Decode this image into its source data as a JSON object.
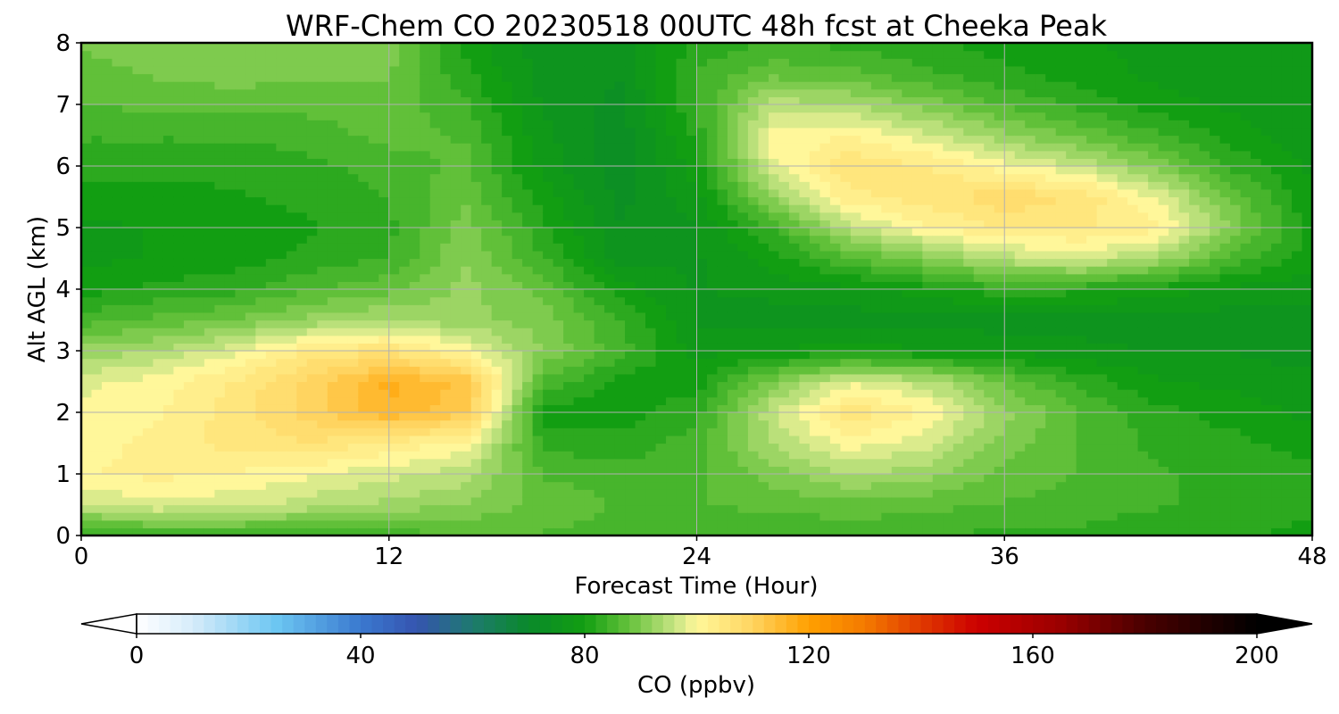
{
  "chart_data": {
    "type": "heatmap",
    "title": "WRF-Chem CO  20230518 00UTC 48h fcst at Cheeka Peak",
    "xlabel": "Forecast Time (Hour)",
    "ylabel": "Alt AGL (km)",
    "xlim": [
      0,
      48
    ],
    "ylim": [
      0,
      8
    ],
    "x_ticks": [
      0,
      12,
      24,
      36,
      48
    ],
    "y_ticks": [
      0,
      1,
      2,
      3,
      4,
      5,
      6,
      7,
      8
    ],
    "grid": true,
    "colorbar": {
      "label": "CO  (ppbv)",
      "range": [
        0,
        200
      ],
      "ticks": [
        0,
        40,
        80,
        120,
        160,
        200
      ],
      "extend": "both",
      "placement": "bottom",
      "stops": [
        {
          "v": 0,
          "c": "#ffffff"
        },
        {
          "v": 10,
          "c": "#d6ecfa"
        },
        {
          "v": 25,
          "c": "#6cc6f2"
        },
        {
          "v": 40,
          "c": "#3a79cf"
        },
        {
          "v": 50,
          "c": "#3554b0"
        },
        {
          "v": 60,
          "c": "#1e7a6e"
        },
        {
          "v": 70,
          "c": "#0a8a2a"
        },
        {
          "v": 80,
          "c": "#129e12"
        },
        {
          "v": 88,
          "c": "#66c23c"
        },
        {
          "v": 96,
          "c": "#c6e483"
        },
        {
          "v": 100,
          "c": "#fff79a"
        },
        {
          "v": 110,
          "c": "#ffd460"
        },
        {
          "v": 120,
          "c": "#ffa000"
        },
        {
          "v": 130,
          "c": "#f47a00"
        },
        {
          "v": 140,
          "c": "#e03a00"
        },
        {
          "v": 150,
          "c": "#cc0000"
        },
        {
          "v": 165,
          "c": "#9a0000"
        },
        {
          "v": 180,
          "c": "#4a0000"
        },
        {
          "v": 200,
          "c": "#000000"
        }
      ]
    },
    "field": {
      "x": [
        0,
        3,
        6,
        9,
        12,
        15,
        18,
        21,
        24,
        27,
        30,
        33,
        36,
        39,
        42,
        45,
        48
      ],
      "y": [
        0,
        0.5,
        1,
        1.5,
        2,
        2.5,
        3,
        3.5,
        4,
        4.5,
        5,
        5.5,
        6,
        6.5,
        7,
        7.5,
        8
      ],
      "z": [
        [
          82,
          84,
          84,
          84,
          85,
          86,
          86,
          85,
          85,
          84,
          84,
          84,
          83,
          83,
          82,
          82,
          80
        ],
        [
          96,
          98,
          97,
          95,
          93,
          91,
          88,
          86,
          86,
          87,
          88,
          87,
          86,
          85,
          84,
          83,
          82
        ],
        [
          101,
          102,
          101,
          99,
          97,
          95,
          86,
          85,
          86,
          90,
          94,
          92,
          88,
          86,
          84,
          83,
          82
        ],
        [
          100,
          102,
          105,
          106,
          103,
          100,
          83,
          82,
          85,
          94,
          100,
          97,
          90,
          86,
          83,
          82,
          80
        ],
        [
          99,
          101,
          105,
          110,
          116,
          112,
          80,
          80,
          83,
          96,
          106,
          101,
          92,
          86,
          82,
          80,
          78
        ],
        [
          98,
          100,
          104,
          110,
          117,
          113,
          86,
          80,
          80,
          90,
          98,
          95,
          88,
          83,
          79,
          78,
          77
        ],
        [
          92,
          94,
          98,
          104,
          106,
          100,
          91,
          85,
          78,
          79,
          80,
          79,
          78,
          77,
          76,
          76,
          75
        ],
        [
          85,
          87,
          89,
          92,
          94,
          92,
          90,
          84,
          76,
          75,
          75,
          75,
          75,
          75,
          75,
          75,
          75
        ],
        [
          80,
          82,
          83,
          86,
          88,
          92,
          88,
          80,
          76,
          77,
          78,
          80,
          83,
          82,
          80,
          78,
          77
        ],
        [
          78,
          79,
          80,
          82,
          84,
          91,
          84,
          75,
          76,
          80,
          86,
          90,
          95,
          97,
          93,
          85,
          80
        ],
        [
          78,
          79,
          80,
          81,
          83,
          90,
          82,
          74,
          76,
          84,
          95,
          101,
          104,
          104,
          102,
          90,
          80
        ],
        [
          80,
          80,
          81,
          82,
          84,
          88,
          80,
          73,
          78,
          92,
          103,
          105,
          108,
          106,
          98,
          88,
          79
        ],
        [
          82,
          82,
          82,
          83,
          85,
          87,
          78,
          72,
          80,
          98,
          106,
          104,
          100,
          96,
          90,
          83,
          78
        ],
        [
          84,
          84,
          84,
          85,
          87,
          86,
          77,
          72,
          82,
          100,
          101,
          97,
          92,
          88,
          84,
          80,
          77
        ],
        [
          86,
          87,
          87,
          87,
          88,
          84,
          76,
          73,
          84,
          95,
          94,
          90,
          86,
          83,
          80,
          78,
          77
        ],
        [
          88,
          89,
          90,
          89,
          89,
          82,
          75,
          74,
          84,
          88,
          87,
          84,
          82,
          80,
          78,
          77,
          77
        ],
        [
          89,
          90,
          91,
          90,
          90,
          80,
          75,
          75,
          82,
          84,
          83,
          82,
          80,
          79,
          78,
          77,
          77
        ]
      ]
    }
  }
}
